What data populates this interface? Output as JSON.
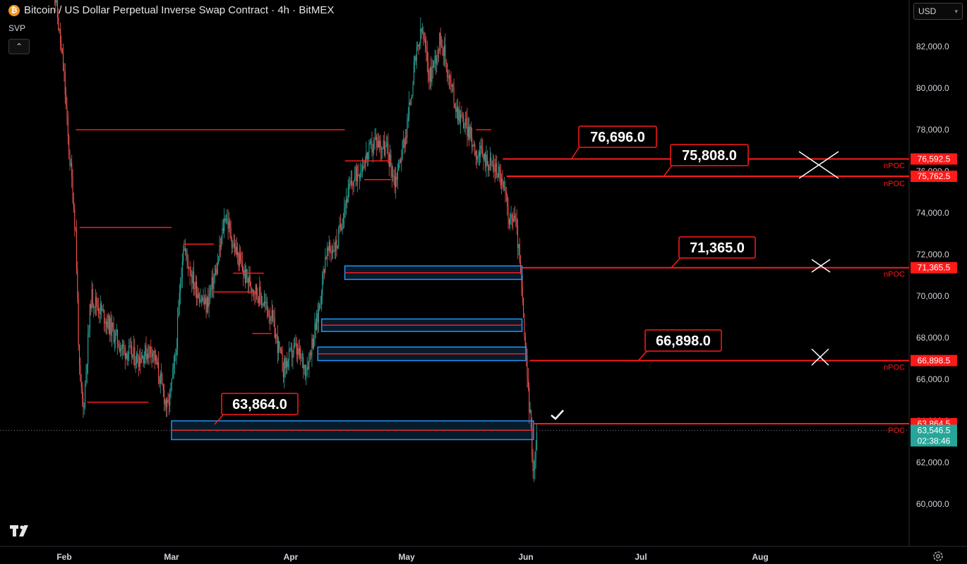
{
  "header": {
    "icon_letter": "₿",
    "title": "Bitcoin / US Dollar Perpetual Inverse Swap Contract · 4h · BitMEX"
  },
  "indicator": {
    "name": "SVP",
    "collapse_icon": "chevron-up-icon"
  },
  "currency_selector": {
    "value": "USD"
  },
  "colors": {
    "background": "#000000",
    "up": "#26a69a",
    "down": "#ef5350",
    "level": "#ff1a1a",
    "zone": "#2196f3",
    "axis_text": "#d1d4dc"
  },
  "chart_data": {
    "type": "candlestick",
    "symbol": "BTCUSD",
    "timeframe": "4h",
    "exchange": "BitMEX",
    "x_ticks": [
      "Feb",
      "Mar",
      "Apr",
      "May",
      "Jun",
      "Jul",
      "Aug"
    ],
    "y_ticks": [
      "82,000.0",
      "80,000.0",
      "78,000.0",
      "76,000.0",
      "74,000.0",
      "72,000.0",
      "70,000.0",
      "68,000.0",
      "66,000.0",
      "64,000.0",
      "62,000.0",
      "60,000.0"
    ],
    "y_range": [
      59000,
      83500
    ],
    "price_path": [
      [
        "Jan 29",
        85500
      ],
      [
        "Feb 1",
        80500
      ],
      [
        "Feb 2",
        77500
      ],
      [
        "Feb 3",
        75500
      ],
      [
        "Feb 4",
        73000
      ],
      [
        "Feb 5",
        66000
      ],
      [
        "Feb 6",
        64500
      ],
      [
        "Feb 8",
        70000
      ],
      [
        "Feb 10",
        69500
      ],
      [
        "Feb 13",
        68500
      ],
      [
        "Feb 16",
        67500
      ],
      [
        "Feb 20",
        67000
      ],
      [
        "Feb 24",
        67500
      ],
      [
        "Feb 26",
        66000
      ],
      [
        "Feb 28",
        64500
      ],
      [
        "Mar 2",
        67000
      ],
      [
        "Mar 4",
        72500
      ],
      [
        "Mar 7",
        70500
      ],
      [
        "Mar 10",
        69500
      ],
      [
        "Mar 13",
        71500
      ],
      [
        "Mar 15",
        74000
      ],
      [
        "Mar 17",
        72500
      ],
      [
        "Mar 20",
        71000
      ],
      [
        "Mar 24",
        70000
      ],
      [
        "Mar 27",
        69000
      ],
      [
        "Mar 30",
        66500
      ],
      [
        "Apr 2",
        67500
      ],
      [
        "Apr 5",
        66500
      ],
      [
        "Apr 8",
        69000
      ],
      [
        "Apr 10",
        72000
      ],
      [
        "Apr 13",
        72500
      ],
      [
        "Apr 15",
        74500
      ],
      [
        "Apr 17",
        75500
      ],
      [
        "Apr 20",
        76500
      ],
      [
        "Apr 23",
        77500
      ],
      [
        "Apr 26",
        77000
      ],
      [
        "Apr 28",
        75500
      ],
      [
        "May 1",
        78000
      ],
      [
        "May 3",
        81000
      ],
      [
        "May 5",
        82800
      ],
      [
        "May 7",
        80500
      ],
      [
        "May 10",
        82500
      ],
      [
        "May 12",
        80500
      ],
      [
        "May 14",
        79000
      ],
      [
        "May 17",
        78000
      ],
      [
        "May 19",
        77000
      ],
      [
        "May 22",
        76500
      ],
      [
        "May 25",
        76000
      ],
      [
        "May 27",
        74500
      ],
      [
        "May 28",
        73500
      ],
      [
        "May 29",
        74000
      ],
      [
        "May 30",
        72500
      ],
      [
        "May 31",
        70000
      ],
      [
        "Jun 1",
        67000
      ],
      [
        "Jun 2",
        64500
      ],
      [
        "Jun 3",
        61500
      ],
      [
        "Jun 4",
        63546.5
      ]
    ],
    "annotations": {
      "callouts": [
        "76,696.0",
        "75,808.0",
        "71,365.0",
        "66,898.0",
        "63,864.0"
      ],
      "price_labels": [
        {
          "text": "76,592.5",
          "value": 76592.5,
          "tag": "nPOC"
        },
        {
          "text": "75,762.5",
          "value": 75762.5,
          "tag": "nPOC"
        },
        {
          "text": "71,365.5",
          "value": 71365.5,
          "tag": "nPOC"
        },
        {
          "text": "66,898.5",
          "value": 66898.5,
          "tag": "nPOC"
        },
        {
          "text": "63,864.5",
          "value": 63864.5,
          "tag": "POC"
        }
      ],
      "current_price": "63,546.5",
      "countdown": "02:38:46"
    }
  }
}
